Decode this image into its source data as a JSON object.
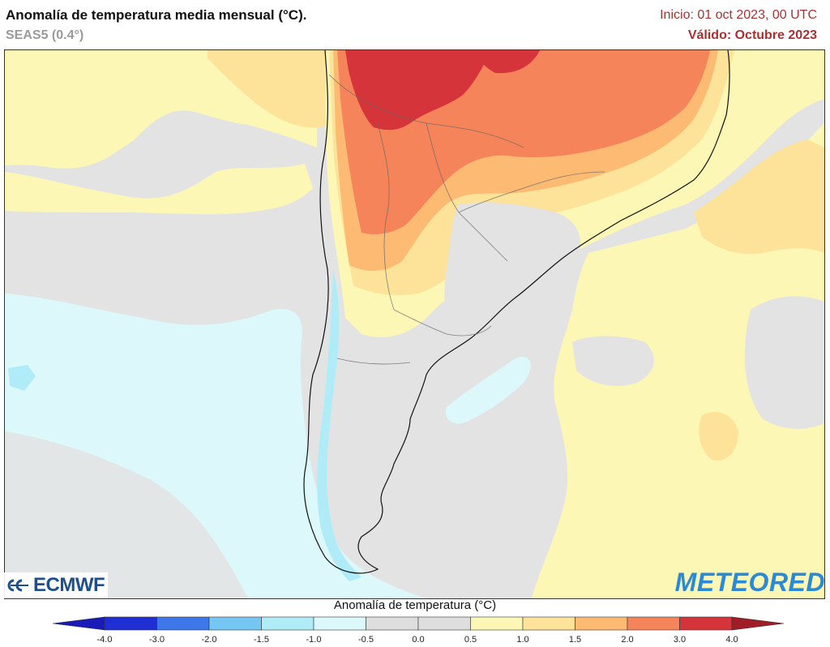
{
  "header": {
    "title": "Anomalía de temperatura media mensual (°C).",
    "model": "SEAS5 (0.4°)",
    "init": "Inicio: 01 oct 2023, 00 UTC",
    "valid": "Válido: Octubre 2023"
  },
  "logos": {
    "left": "ECMWF",
    "right": "METEORED"
  },
  "colorbar": {
    "title": "Anomalía de temperatura (°C)",
    "ticks": [
      "-4.0",
      "-3.0",
      "-2.0",
      "-1.5",
      "-1.0",
      "-0.5",
      "0.0",
      "0.5",
      "1.0",
      "1.5",
      "2.0",
      "3.0",
      "4.0"
    ],
    "colors": [
      "#1f2fd4",
      "#3d77ea",
      "#76c6f3",
      "#b0ecf8",
      "#dcf8fb",
      "#dedede",
      "#dedede",
      "#fdf7b6",
      "#fde29a",
      "#fcba72",
      "#f6845a",
      "#d6343b"
    ],
    "under_color": "#1a1ab8",
    "over_color": "#a01c26"
  },
  "colors": {
    "accent_red": "#a83232",
    "neutral_gray": "#e3e3e3",
    "cold_light": "#dcf8fb",
    "warm_light": "#fdf7b6"
  }
}
